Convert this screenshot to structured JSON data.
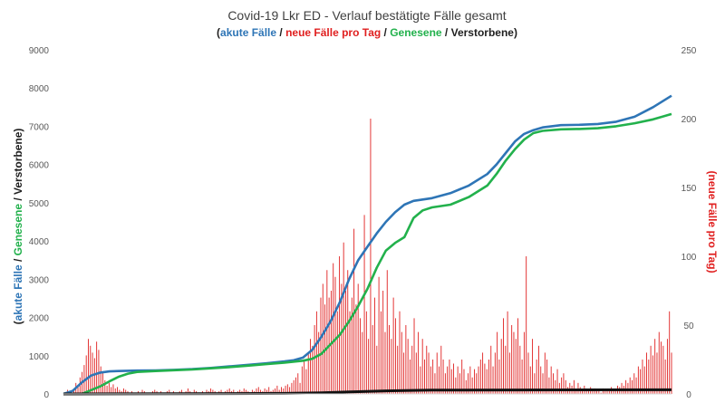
{
  "chart_data": {
    "type": "line",
    "title": "Covid-19 Lkr ED - Verlauf bestätigte Fälle gesamt",
    "subtitle_parts": [
      {
        "text": "(",
        "color": "#1F1F1F"
      },
      {
        "text": "akute Fälle",
        "color": "#2E75B6"
      },
      {
        "text": " / ",
        "color": "#1F1F1F"
      },
      {
        "text": "neue Fälle pro Tag",
        "color": "#E02020"
      },
      {
        "text": " / ",
        "color": "#1F1F1F"
      },
      {
        "text": "Genesene",
        "color": "#22B14C"
      },
      {
        "text": " / Verstorbene)",
        "color": "#1F1F1F"
      }
    ],
    "y_left": {
      "ticks": [
        "0",
        "1000",
        "2000",
        "3000",
        "4000",
        "5000",
        "6000",
        "7000",
        "8000",
        "9000"
      ],
      "range": [
        0,
        9000
      ]
    },
    "y_right": {
      "ticks": [
        "0",
        "50",
        "100",
        "150",
        "200",
        "250"
      ],
      "range": [
        0,
        250
      ]
    },
    "ylabel_left_parts": [
      {
        "text": "(",
        "color": "#1F1F1F"
      },
      {
        "text": "akute Fälle",
        "color": "#2E75B6"
      },
      {
        "text": " / ",
        "color": "#1F1F1F"
      },
      {
        "text": "Genesene",
        "color": "#22B14C"
      },
      {
        "text": " / Verstorbene)",
        "color": "#1F1F1F"
      }
    ],
    "ylabel_right": "(neue Fälle pro Tag)",
    "ylabel_right_color": "#E02020",
    "grid": false,
    "x_range": [
      0,
      330
    ],
    "series": [
      {
        "name": "akute Fälle",
        "color": "#2E75B6",
        "axis": "left",
        "points": [
          [
            0,
            0
          ],
          [
            5,
            80
          ],
          [
            10,
            300
          ],
          [
            15,
            480
          ],
          [
            20,
            560
          ],
          [
            25,
            590
          ],
          [
            30,
            600
          ],
          [
            40,
            610
          ],
          [
            50,
            615
          ],
          [
            60,
            630
          ],
          [
            70,
            650
          ],
          [
            80,
            680
          ],
          [
            90,
            720
          ],
          [
            100,
            760
          ],
          [
            110,
            800
          ],
          [
            120,
            850
          ],
          [
            125,
            880
          ],
          [
            130,
            950
          ],
          [
            135,
            1150
          ],
          [
            140,
            1500
          ],
          [
            145,
            1900
          ],
          [
            150,
            2400
          ],
          [
            155,
            3000
          ],
          [
            160,
            3500
          ],
          [
            165,
            3850
          ],
          [
            170,
            4200
          ],
          [
            175,
            4500
          ],
          [
            180,
            4750
          ],
          [
            185,
            4950
          ],
          [
            190,
            5050
          ],
          [
            200,
            5120
          ],
          [
            210,
            5250
          ],
          [
            220,
            5450
          ],
          [
            230,
            5750
          ],
          [
            235,
            6000
          ],
          [
            240,
            6300
          ],
          [
            245,
            6600
          ],
          [
            250,
            6800
          ],
          [
            255,
            6900
          ],
          [
            260,
            6970
          ],
          [
            270,
            7030
          ],
          [
            280,
            7040
          ],
          [
            290,
            7060
          ],
          [
            300,
            7120
          ],
          [
            310,
            7250
          ],
          [
            320,
            7500
          ],
          [
            330,
            7800
          ]
        ]
      },
      {
        "name": "Genesene",
        "color": "#22B14C",
        "axis": "left",
        "points": [
          [
            0,
            0
          ],
          [
            10,
            0
          ],
          [
            15,
            100
          ],
          [
            20,
            200
          ],
          [
            25,
            330
          ],
          [
            30,
            450
          ],
          [
            35,
            530
          ],
          [
            40,
            575
          ],
          [
            50,
            600
          ],
          [
            60,
            620
          ],
          [
            70,
            640
          ],
          [
            80,
            670
          ],
          [
            90,
            700
          ],
          [
            100,
            740
          ],
          [
            110,
            780
          ],
          [
            120,
            820
          ],
          [
            130,
            870
          ],
          [
            135,
            920
          ],
          [
            140,
            1050
          ],
          [
            145,
            1300
          ],
          [
            150,
            1550
          ],
          [
            155,
            1900
          ],
          [
            160,
            2300
          ],
          [
            165,
            2750
          ],
          [
            170,
            3300
          ],
          [
            175,
            3750
          ],
          [
            180,
            3950
          ],
          [
            185,
            4100
          ],
          [
            190,
            4600
          ],
          [
            195,
            4800
          ],
          [
            200,
            4880
          ],
          [
            210,
            4950
          ],
          [
            220,
            5150
          ],
          [
            230,
            5450
          ],
          [
            235,
            5750
          ],
          [
            240,
            6100
          ],
          [
            245,
            6400
          ],
          [
            250,
            6650
          ],
          [
            255,
            6820
          ],
          [
            260,
            6880
          ],
          [
            270,
            6920
          ],
          [
            280,
            6930
          ],
          [
            290,
            6950
          ],
          [
            300,
            7000
          ],
          [
            310,
            7080
          ],
          [
            320,
            7180
          ],
          [
            330,
            7320
          ]
        ]
      },
      {
        "name": "Verstorbene",
        "color": "#111111",
        "axis": "left",
        "points": [
          [
            0,
            0
          ],
          [
            60,
            5
          ],
          [
            120,
            15
          ],
          [
            140,
            30
          ],
          [
            160,
            60
          ],
          [
            175,
            80
          ],
          [
            185,
            90
          ],
          [
            200,
            100
          ],
          [
            330,
            110
          ]
        ]
      }
    ],
    "bars": {
      "name": "neue Fälle pro Tag",
      "color": "#E02020",
      "axis": "right",
      "values": [
        0,
        0,
        3,
        1,
        0,
        2,
        8,
        5,
        12,
        16,
        21,
        28,
        40,
        35,
        30,
        26,
        38,
        32,
        20,
        15,
        10,
        6,
        8,
        5,
        7,
        4,
        5,
        3,
        2,
        4,
        3,
        2,
        1,
        2,
        1,
        0,
        2,
        1,
        3,
        2,
        1,
        0,
        1,
        2,
        3,
        2,
        1,
        2,
        0,
        1,
        2,
        3,
        1,
        2,
        1,
        0,
        2,
        3,
        1,
        2,
        4,
        2,
        1,
        3,
        2,
        1,
        0,
        2,
        1,
        3,
        2,
        4,
        3,
        2,
        1,
        2,
        3,
        1,
        2,
        3,
        4,
        2,
        3,
        1,
        2,
        3,
        2,
        4,
        3,
        2,
        1,
        3,
        2,
        4,
        5,
        3,
        2,
        4,
        3,
        5,
        2,
        3,
        4,
        6,
        3,
        5,
        4,
        6,
        7,
        5,
        8,
        10,
        12,
        15,
        8,
        20,
        25,
        18,
        30,
        40,
        35,
        50,
        60,
        45,
        70,
        80,
        65,
        90,
        70,
        75,
        95,
        85,
        60,
        100,
        80,
        110,
        75,
        90,
        60,
        70,
        120,
        65,
        80,
        55,
        45,
        130,
        60,
        40,
        200,
        50,
        70,
        35,
        85,
        60,
        75,
        45,
        90,
        50,
        40,
        70,
        55,
        35,
        60,
        45,
        30,
        50,
        40,
        25,
        35,
        55,
        30,
        45,
        20,
        40,
        25,
        35,
        30,
        20,
        25,
        15,
        30,
        20,
        35,
        25,
        15,
        20,
        25,
        18,
        22,
        12,
        20,
        15,
        25,
        18,
        10,
        15,
        20,
        12,
        18,
        15,
        20,
        25,
        30,
        22,
        18,
        25,
        35,
        20,
        30,
        45,
        25,
        40,
        55,
        35,
        60,
        30,
        50,
        45,
        40,
        55,
        35,
        25,
        45,
        100,
        30,
        20,
        40,
        15,
        25,
        35,
        20,
        15,
        30,
        25,
        12,
        20,
        15,
        10,
        18,
        8,
        12,
        15,
        10,
        5,
        8,
        6,
        10,
        4,
        8,
        5,
        3,
        6,
        4,
        2,
        5,
        3,
        4,
        2,
        3,
        1,
        4,
        2,
        3,
        2,
        5,
        3,
        4,
        6,
        5,
        8,
        6,
        10,
        8,
        12,
        10,
        15,
        12,
        20,
        18,
        25,
        20,
        30,
        25,
        35,
        28,
        40,
        30,
        45,
        38,
        35,
        25,
        40,
        60,
        30
      ]
    }
  }
}
